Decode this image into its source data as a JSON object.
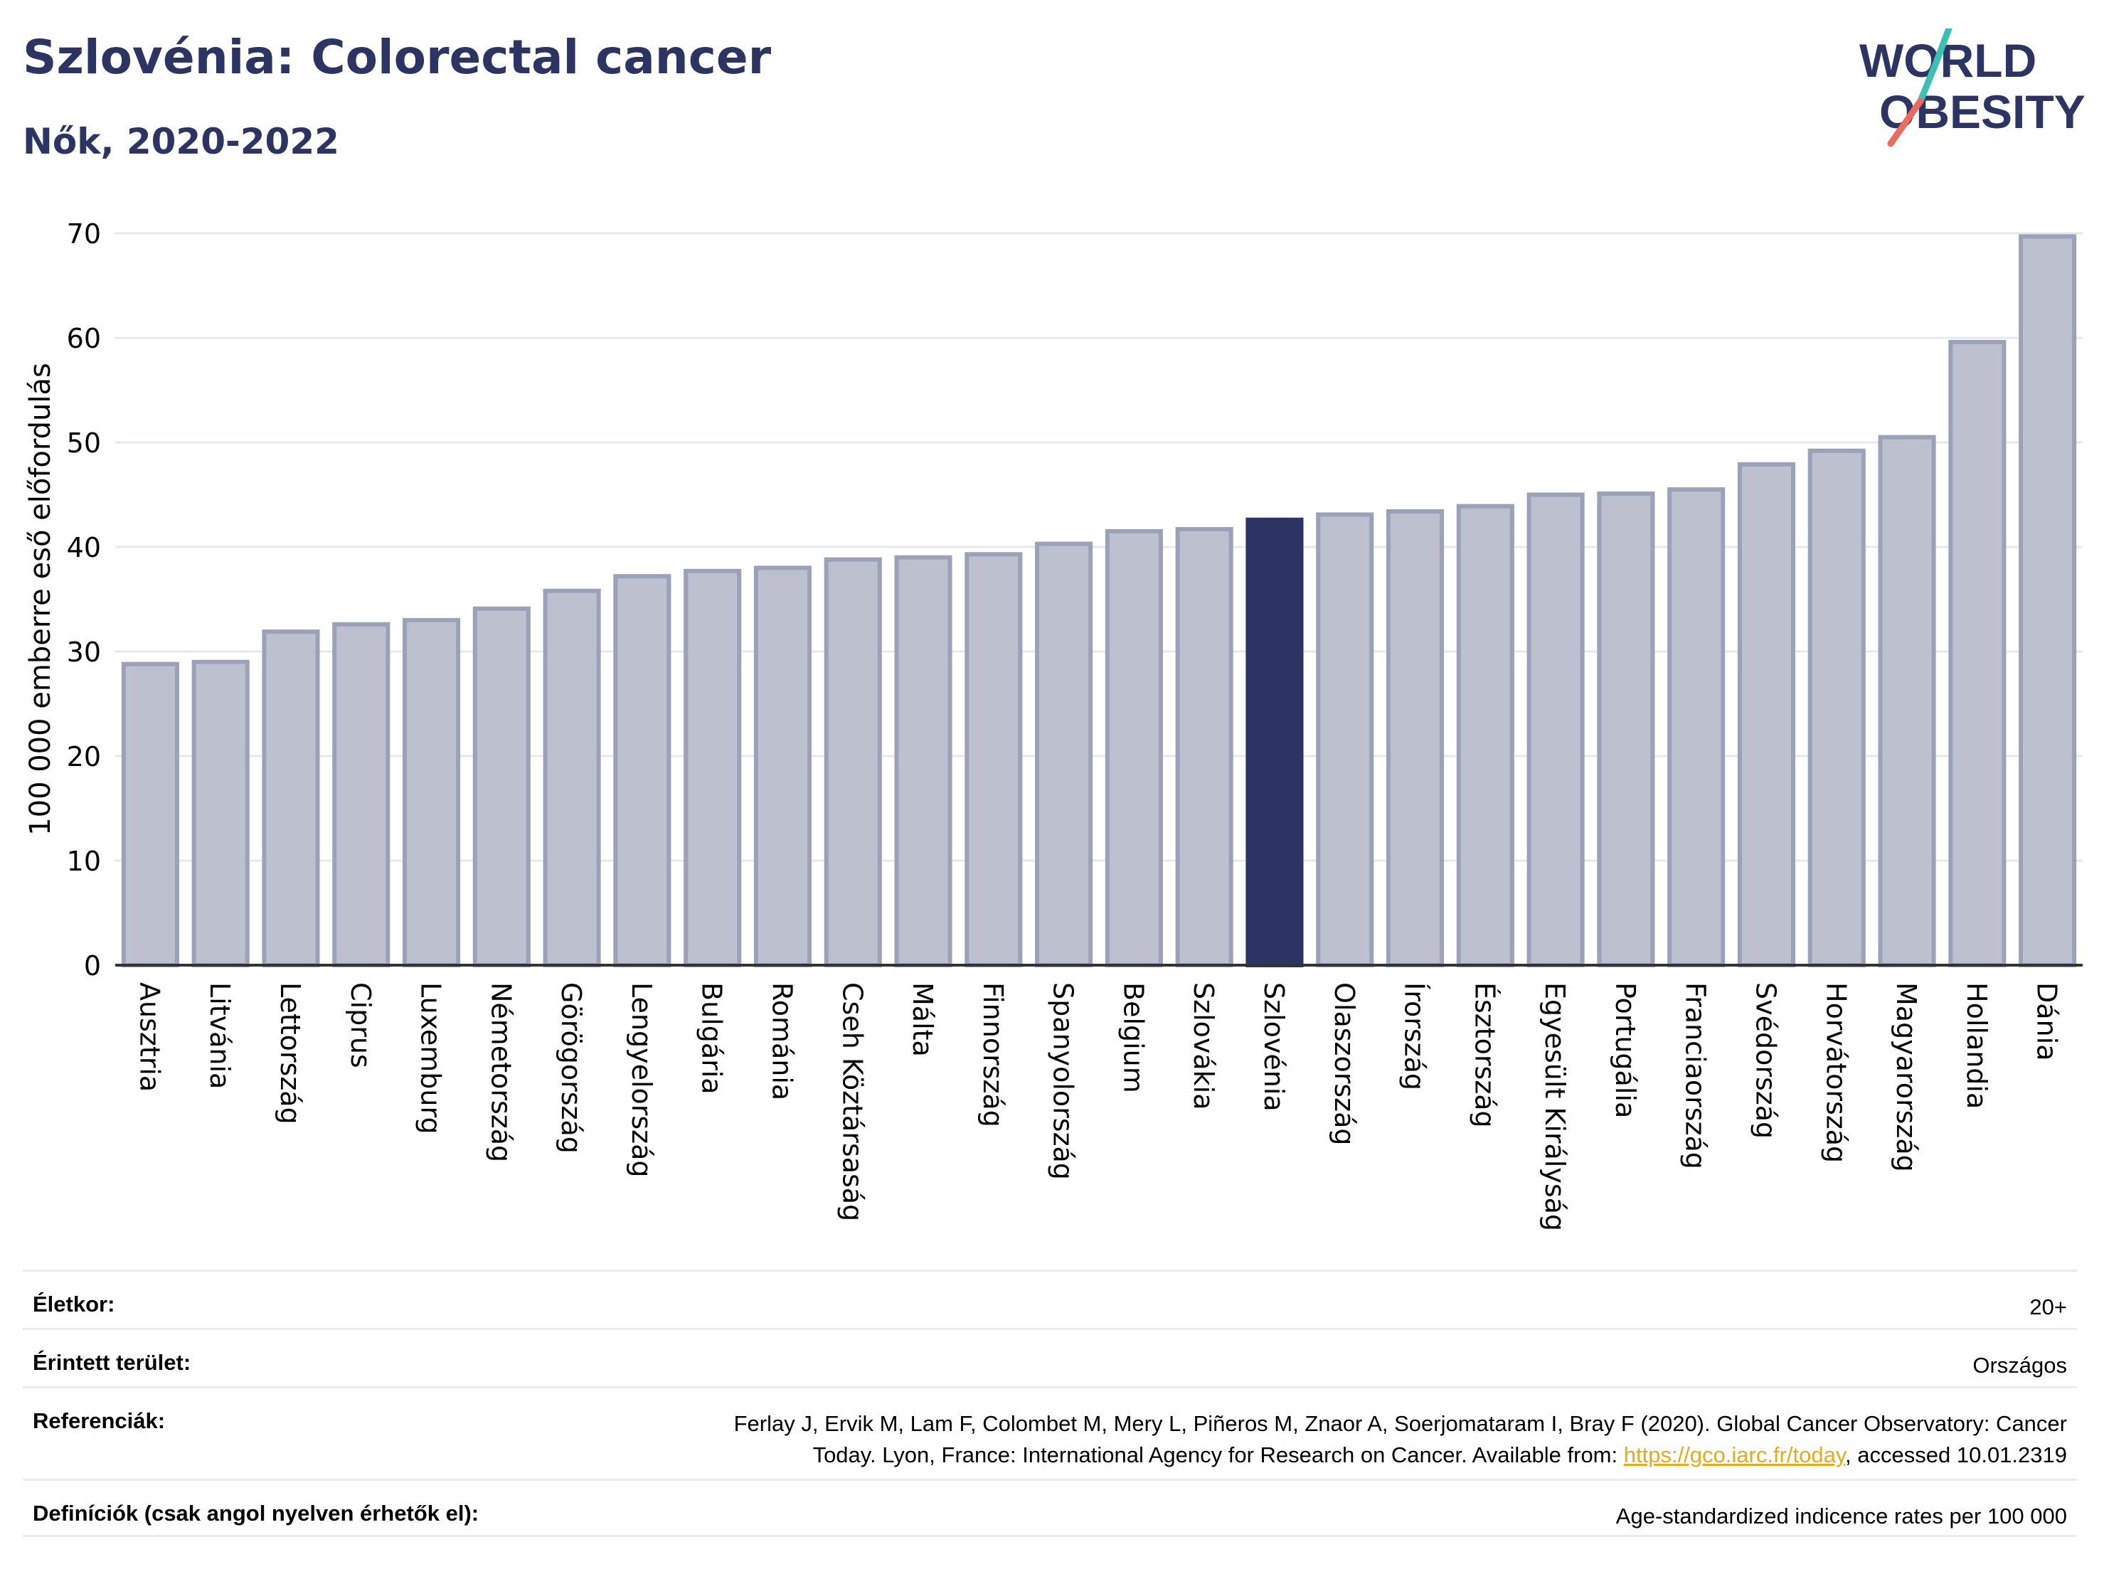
{
  "header": {
    "title": "Szlovénia: Colorectal cancer",
    "subtitle": "Nők, 2020-2022",
    "logo_line1": "WORLD",
    "logo_line2": "OBESITY"
  },
  "colors": {
    "bar": "#bcc0cf",
    "bar_border": "#9ba1b8",
    "highlight": "#2b3462",
    "title": "#2b3462",
    "logo_teal": "#3cbfb4",
    "logo_coral": "#ec6a5e"
  },
  "chart_data": {
    "type": "bar",
    "title": "Szlovénia: Colorectal cancer",
    "subtitle": "Nők, 2020-2022",
    "ylabel": "100 000 emberre eső előfordulás",
    "xlabel": "",
    "ylim": [
      0,
      70
    ],
    "yticks": [
      0,
      10,
      20,
      30,
      40,
      50,
      60,
      70
    ],
    "grid": true,
    "highlight": "Szlovénia",
    "categories": [
      "Ausztria",
      "Litvánia",
      "Lettország",
      "Ciprus",
      "Luxemburg",
      "Németország",
      "Görögország",
      "Lengyelország",
      "Bulgária",
      "Románia",
      "Cseh Köztársaság",
      "Málta",
      "Finnország",
      "Spanyolország",
      "Belgium",
      "Szlovákia",
      "Szlovénia",
      "Olaszország",
      "Írország",
      "Észtország",
      "Egyesült Királyság",
      "Portugália",
      "Franciaország",
      "Svédország",
      "Horvátország",
      "Magyarország",
      "Hollandia",
      "Dánia"
    ],
    "values": [
      28.8,
      29.0,
      31.9,
      32.6,
      33.0,
      34.1,
      35.8,
      37.2,
      37.7,
      38.0,
      38.8,
      39.0,
      39.3,
      40.3,
      41.5,
      41.7,
      42.6,
      43.1,
      43.4,
      43.9,
      45.0,
      45.1,
      45.5,
      47.9,
      49.2,
      50.5,
      59.6,
      69.7
    ]
  },
  "footer": {
    "age_label": "Életkor:",
    "age_value": "20+",
    "area_label": "Érintett terület:",
    "area_value": "Országos",
    "ref_label": "Referenciák:",
    "ref_line1": "Ferlay J, Ervik M, Lam F, Colombet M, Mery L, Piñeros M, Znaor A, Soerjomataram I, Bray F (2020). Global Cancer Observatory: Cancer",
    "ref_line2_pre": "Today. Lyon, France: International Agency for Research on Cancer. Available from: ",
    "ref_link": "https://gco.iarc.fr/today",
    "ref_line2_post": ", accessed 10.01.2319",
    "def_label": "Definíciók (csak angol nyelven érhetők el):",
    "def_value": "Age-standardized indicence rates per 100 000"
  }
}
